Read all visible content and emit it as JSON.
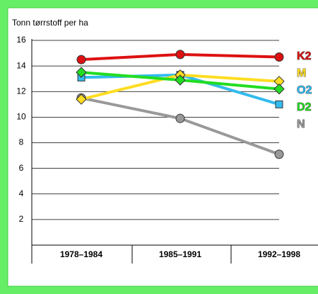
{
  "chart_data": {
    "type": "line",
    "y_label": "Tonn tørrstoff per ha",
    "categories": [
      "1978–1984",
      "1985–1991",
      "1992–1998"
    ],
    "series": [
      {
        "name": "K2",
        "color": "#dd1111",
        "marker": "circle",
        "values": [
          14.5,
          14.9,
          14.7
        ]
      },
      {
        "name": "M",
        "color": "#ffdd22",
        "marker": "diamond",
        "values": [
          11.4,
          13.3,
          12.8
        ]
      },
      {
        "name": "O2",
        "color": "#33bbee",
        "marker": "square",
        "values": [
          13.1,
          13.3,
          11.0
        ]
      },
      {
        "name": "D2",
        "color": "#22dd22",
        "marker": "diamond",
        "values": [
          13.5,
          12.9,
          12.2
        ]
      },
      {
        "name": "N",
        "color": "#999999",
        "marker": "circle",
        "values": [
          11.5,
          9.9,
          7.1
        ]
      }
    ],
    "ylim": [
      0,
      16
    ],
    "yticks": [
      2,
      4,
      6,
      8,
      10,
      12,
      14,
      16
    ],
    "grid": true
  }
}
